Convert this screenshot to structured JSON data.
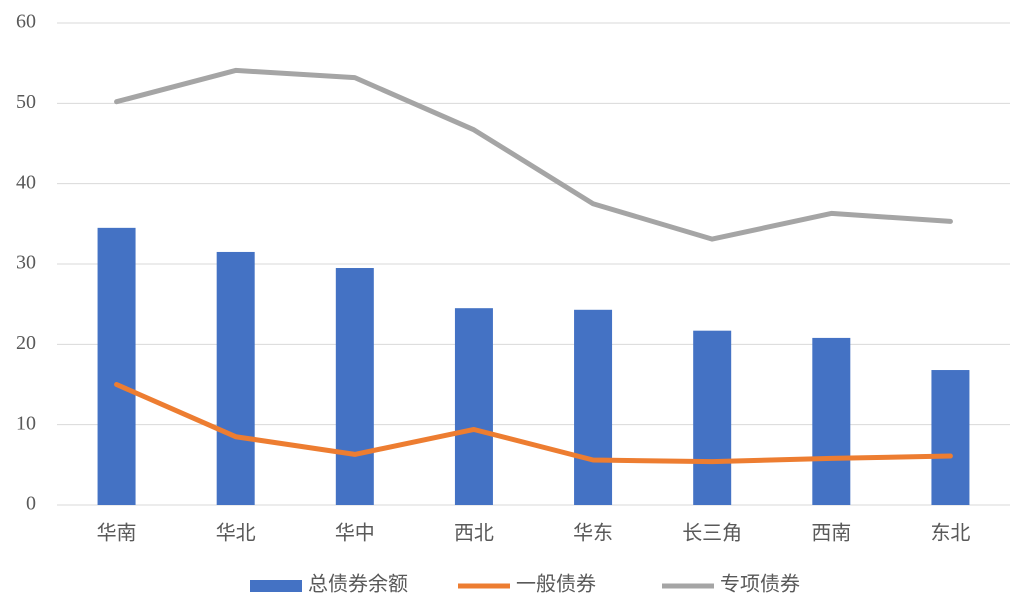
{
  "chart_data": {
    "type": "combo",
    "categories": [
      "华南",
      "华北",
      "华中",
      "西北",
      "华东",
      "长三角",
      "西南",
      "东北"
    ],
    "series": [
      {
        "name": "总债券余额",
        "type": "bar",
        "color": "#4472c4",
        "values": [
          34.5,
          31.5,
          29.5,
          24.5,
          24.3,
          21.7,
          20.8,
          16.8
        ]
      },
      {
        "name": "一般债券",
        "type": "line",
        "color": "#ed7d31",
        "values": [
          15.0,
          8.5,
          6.3,
          9.4,
          5.6,
          5.4,
          5.8,
          6.1
        ]
      },
      {
        "name": "专项债券",
        "type": "line",
        "color": "#a5a5a5",
        "values": [
          50.2,
          54.1,
          53.2,
          46.7,
          37.5,
          33.1,
          36.3,
          35.3
        ]
      }
    ],
    "ylim": [
      0,
      60
    ],
    "yticks": [
      0,
      10,
      20,
      30,
      40,
      50,
      60
    ],
    "grid": true,
    "legend": "bottom"
  }
}
